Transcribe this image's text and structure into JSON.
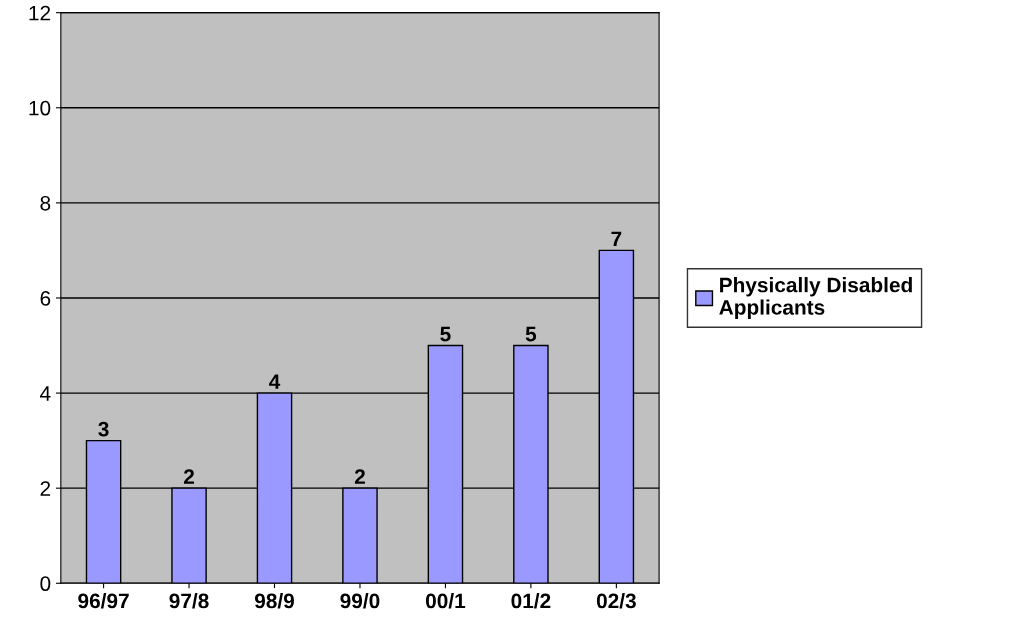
{
  "chart_data": {
    "type": "bar",
    "categories": [
      "96/97",
      "97/8",
      "98/9",
      "99/0",
      "00/1",
      "01/2",
      "02/3"
    ],
    "series": [
      {
        "name": "Physically Disabled Applicants",
        "color": "#9999ff",
        "values": [
          3,
          2,
          4,
          2,
          5,
          5,
          7
        ]
      }
    ],
    "ylim": [
      0,
      12
    ],
    "yticks": [
      0,
      2,
      4,
      6,
      8,
      10,
      12
    ],
    "grid": "y",
    "legend": "right",
    "data_labels": true
  }
}
